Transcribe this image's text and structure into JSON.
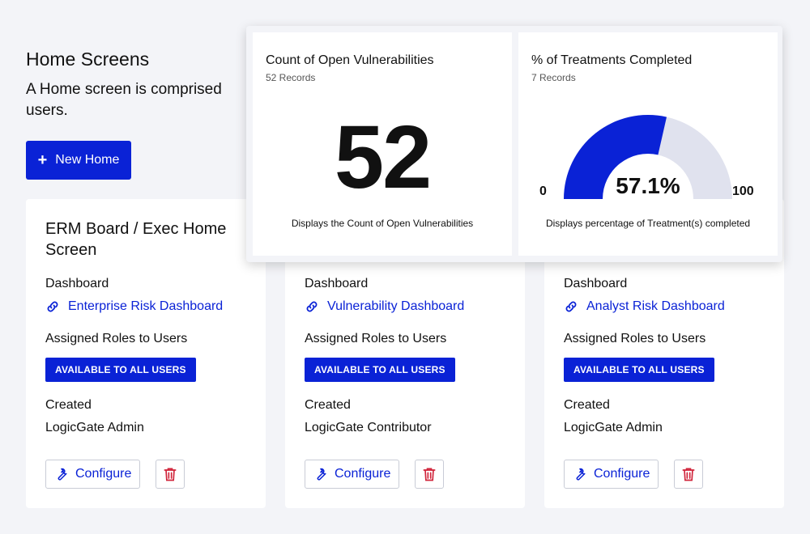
{
  "header": {
    "title": "Home Screens",
    "description": "A Home screen is comprised users.",
    "new_home_label": "New Home"
  },
  "colors": {
    "accent": "#0a22d6",
    "danger": "#d0233a",
    "gauge_track": "#e0e2ee"
  },
  "cards": [
    {
      "title": "ERM Board / Exec Home Screen",
      "dashboard_label": "Dashboard",
      "dashboard_link": "Enterprise Risk Dashboard",
      "roles_label": "Assigned Roles to Users",
      "badge": "AVAILABLE TO ALL USERS",
      "created_label": "Created",
      "creator": "LogicGate Admin",
      "configure_label": "Configure"
    },
    {
      "title": "",
      "dashboard_label": "Dashboard",
      "dashboard_link": "Vulnerability Dashboard",
      "roles_label": "Assigned Roles to Users",
      "badge": "AVAILABLE TO ALL USERS",
      "created_label": "Created",
      "creator": "LogicGate Contributor",
      "configure_label": "Configure"
    },
    {
      "title": "",
      "dashboard_label": "Dashboard",
      "dashboard_link": "Analyst Risk Dashboard",
      "roles_label": "Assigned Roles to Users",
      "badge": "AVAILABLE TO ALL USERS",
      "created_label": "Created",
      "creator": "LogicGate Admin",
      "configure_label": "Configure"
    }
  ],
  "widgets": {
    "count": {
      "title": "Count of Open Vulnerabilities",
      "records": "52 Records",
      "value": "52",
      "description": "Displays the Count of Open Vulnerabilities"
    },
    "gauge": {
      "title": "% of Treatments Completed",
      "records": "7 Records",
      "value_label": "57.1%",
      "value": 57.1,
      "min": "0",
      "max": "100",
      "description": "Displays percentage of Treatment(s) completed"
    }
  }
}
